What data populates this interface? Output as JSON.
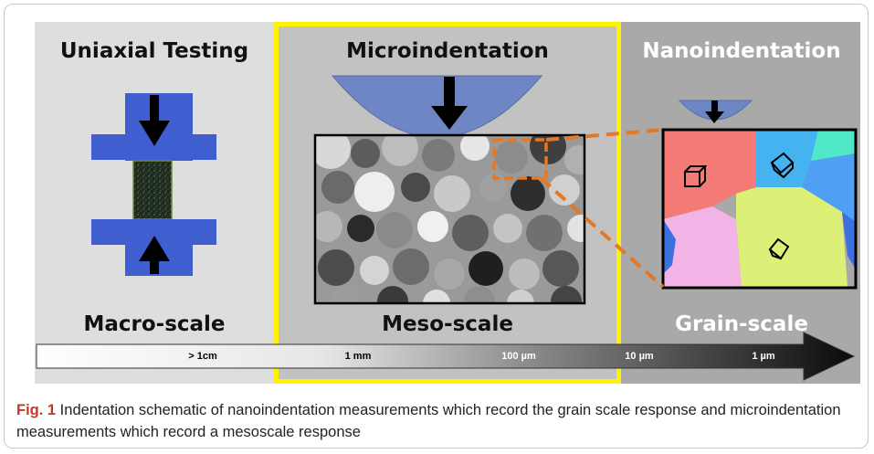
{
  "panels": {
    "left": {
      "title": "Uniaxial Testing",
      "scale": "Macro-scale"
    },
    "middle": {
      "title": "Microindentation",
      "scale": "Meso-scale"
    },
    "right": {
      "title": "Nanoindentation",
      "scale": "Grain-scale"
    }
  },
  "scale_bar": {
    "ticks": [
      "> 1cm",
      "1 mm",
      "100 µm",
      "10 µm",
      "1 µm"
    ]
  },
  "caption": {
    "label": "Fig. 1",
    "text": " Indentation schematic of nanoindentation measurements which record the grain scale response and microindentation measurements which record a mesoscale response"
  },
  "colors": {
    "highlight_border": "#fff200",
    "fixture_blue": "#3f5fd1",
    "indenter_blue": "#6f86c4",
    "zoom_orange": "#e87722"
  }
}
